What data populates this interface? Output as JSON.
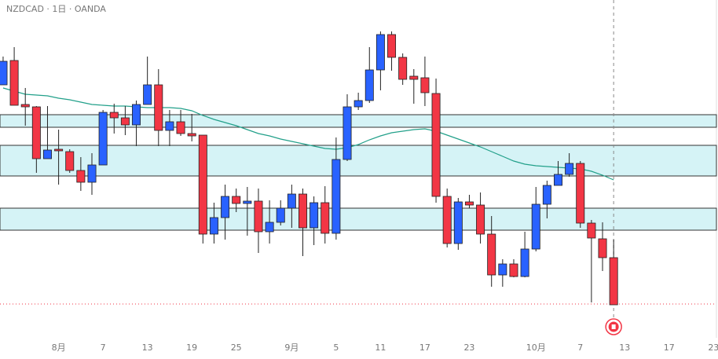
{
  "chart_data": {
    "type": "candlestick",
    "title": "NZDCAD · 1日 · OANDA",
    "open": [
      0.8432,
      0.8463,
      0.8407,
      0.8404,
      0.8338,
      0.835,
      0.8347,
      0.8323,
      0.8308,
      0.833,
      0.8397,
      0.839,
      0.8381,
      0.8407,
      0.8432,
      0.8374,
      0.8385,
      0.837,
      0.8368,
      0.8242,
      0.8263,
      0.829,
      0.8281,
      0.8284,
      0.8245,
      0.8257,
      0.8275,
      0.8293,
      0.825,
      0.8282,
      0.8243,
      0.8337,
      0.8404,
      0.8412,
      0.8451,
      0.8496,
      0.8467,
      0.8443,
      0.8441,
      0.8421,
      0.829,
      0.823,
      0.8283,
      0.8279,
      0.8242,
      0.819,
      0.8204,
      0.8188,
      0.8223,
      0.828,
      0.8304,
      0.8318,
      0.8332,
      0.8256,
      0.8236,
      0.8212
    ],
    "high": [
      0.8468,
      0.848,
      0.8428,
      0.8405,
      0.8405,
      0.8375,
      0.835,
      0.834,
      0.8345,
      0.84,
      0.8408,
      0.8405,
      0.8412,
      0.8468,
      0.8452,
      0.84,
      0.84,
      0.8395,
      0.8368,
      0.8282,
      0.8305,
      0.83,
      0.8302,
      0.83,
      0.8285,
      0.8285,
      0.8305,
      0.83,
      0.829,
      0.8303,
      0.8365,
      0.842,
      0.8422,
      0.848,
      0.85,
      0.85,
      0.8472,
      0.8452,
      0.8468,
      0.844,
      0.83,
      0.8288,
      0.8292,
      0.8295,
      0.8265,
      0.821,
      0.821,
      0.8245,
      0.8302,
      0.831,
      0.8335,
      0.8345,
      0.8335,
      0.826,
      0.8257,
      0.8235
    ],
    "low": [
      0.8432,
      0.8406,
      0.838,
      0.832,
      0.8338,
      0.8305,
      0.832,
      0.8297,
      0.8292,
      0.833,
      0.837,
      0.8368,
      0.8354,
      0.8407,
      0.8354,
      0.8354,
      0.8367,
      0.836,
      0.823,
      0.823,
      0.8235,
      0.827,
      0.824,
      0.8218,
      0.823,
      0.8253,
      0.825,
      0.8214,
      0.8228,
      0.823,
      0.8235,
      0.8335,
      0.84,
      0.8409,
      0.8425,
      0.845,
      0.8432,
      0.8408,
      0.8405,
      0.8282,
      0.8225,
      0.8222,
      0.8275,
      0.823,
      0.8175,
      0.8175,
      0.8187,
      0.8187,
      0.822,
      0.8262,
      0.8304,
      0.8315,
      0.825,
      0.8155,
      0.8195,
      0.8152
    ],
    "close": [
      0.8462,
      0.8406,
      0.8404,
      0.8338,
      0.8349,
      0.8348,
      0.8323,
      0.8308,
      0.833,
      0.8397,
      0.839,
      0.8381,
      0.8407,
      0.8432,
      0.8374,
      0.8385,
      0.837,
      0.8367,
      0.8242,
      0.8263,
      0.829,
      0.8281,
      0.8284,
      0.8245,
      0.8257,
      0.8275,
      0.8293,
      0.825,
      0.8282,
      0.8243,
      0.8337,
      0.8404,
      0.8412,
      0.8451,
      0.8496,
      0.8467,
      0.8439,
      0.8439,
      0.8422,
      0.829,
      0.823,
      0.8283,
      0.8279,
      0.8242,
      0.819,
      0.8204,
      0.8188,
      0.8223,
      0.828,
      0.8304,
      0.8318,
      0.8332,
      0.8256,
      0.8237,
      0.8212,
      0.8152
    ],
    "up_color": "#2962ff",
    "down_color": "#f23645",
    "moving_average": {
      "color": "#22a08a",
      "values": [
        0.8428,
        0.8424,
        0.842,
        0.8419,
        0.8418,
        0.8415,
        0.8413,
        0.841,
        0.8407,
        0.8406,
        0.8405,
        0.8405,
        0.8404,
        0.8403,
        0.8403,
        0.8403,
        0.8402,
        0.8399,
        0.8393,
        0.8388,
        0.8384,
        0.838,
        0.8375,
        0.837,
        0.8367,
        0.8363,
        0.836,
        0.8357,
        0.8354,
        0.8351,
        0.835,
        0.8352,
        0.8356,
        0.8362,
        0.8367,
        0.8371,
        0.8373,
        0.8375,
        0.8376,
        0.8373,
        0.8368,
        0.8363,
        0.8358,
        0.8353,
        0.8347,
        0.8341,
        0.8335,
        0.8331,
        0.8329,
        0.8328,
        0.8327,
        0.8326,
        0.8325,
        0.8322,
        0.8317,
        0.8311
      ]
    },
    "zones": [
      [
        0.8394,
        0.8378
      ],
      [
        0.8355,
        0.8316
      ],
      [
        0.8275,
        0.8247
      ]
    ],
    "zone_color": "#d5f3f6",
    "last_price": 0.8153,
    "last_price_color": "#f23645",
    "ylim": [
      0.811,
      0.854
    ],
    "xlim": [
      -0.28,
      64.26
    ],
    "xticks": [
      {
        "value": 5,
        "label": "8月"
      },
      {
        "value": 9,
        "label": "7"
      },
      {
        "value": 13,
        "label": "13"
      },
      {
        "value": 17,
        "label": "19"
      },
      {
        "value": 21,
        "label": "25"
      },
      {
        "value": 26,
        "label": "9月"
      },
      {
        "value": 30,
        "label": "5"
      },
      {
        "value": 34,
        "label": "11"
      },
      {
        "value": 38,
        "label": "17"
      },
      {
        "value": 42,
        "label": "23"
      },
      {
        "value": 48,
        "label": "10月"
      },
      {
        "value": 52,
        "label": "7"
      },
      {
        "value": 56,
        "label": "13"
      },
      {
        "value": 60,
        "label": "17"
      },
      {
        "value": 64,
        "label": "23"
      }
    ]
  }
}
